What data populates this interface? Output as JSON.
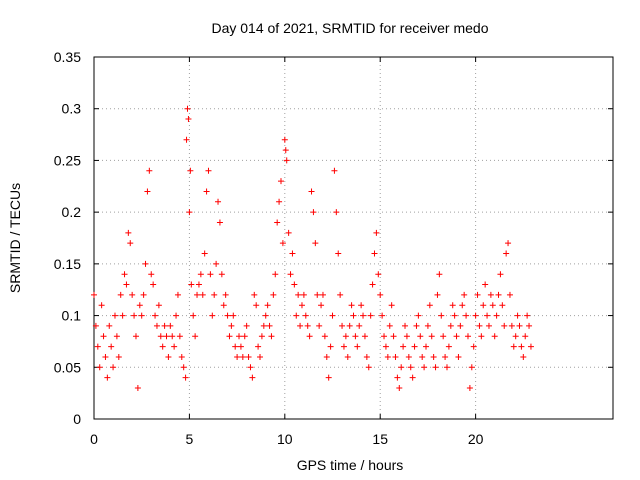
{
  "chart_data": {
    "type": "scatter",
    "title": "Day 014 of 2021, SRMTID for receiver medo",
    "xlabel": "GPS time / hours",
    "ylabel": "SRMTID / TECUs",
    "xlim": [
      0,
      27.2
    ],
    "ylim": [
      0,
      0.35
    ],
    "x_ticks": [
      0,
      5,
      10,
      15,
      20
    ],
    "x_tick_labels": [
      "0",
      "5",
      "10",
      "15",
      "20"
    ],
    "y_ticks": [
      0,
      0.05,
      0.1,
      0.15,
      0.2,
      0.25,
      0.3,
      0.35
    ],
    "y_tick_labels": [
      "0",
      "0.05",
      "0.1",
      "0.15",
      "0.2",
      "0.25",
      "0.3",
      "0.35"
    ],
    "grid": true,
    "marker": "+",
    "color": "#ff0000",
    "x_range_of_data": [
      0,
      23
    ],
    "series": [
      {
        "name": "SRMTID",
        "points": [
          [
            0.0,
            0.12
          ],
          [
            0.1,
            0.09
          ],
          [
            0.2,
            0.07
          ],
          [
            0.3,
            0.05
          ],
          [
            0.4,
            0.11
          ],
          [
            0.5,
            0.08
          ],
          [
            0.6,
            0.06
          ],
          [
            0.7,
            0.04
          ],
          [
            0.8,
            0.09
          ],
          [
            0.9,
            0.07
          ],
          [
            1.0,
            0.05
          ],
          [
            1.1,
            0.1
          ],
          [
            1.2,
            0.08
          ],
          [
            1.3,
            0.06
          ],
          [
            1.4,
            0.12
          ],
          [
            1.5,
            0.1
          ],
          [
            1.6,
            0.14
          ],
          [
            1.7,
            0.13
          ],
          [
            1.8,
            0.18
          ],
          [
            1.9,
            0.17
          ],
          [
            2.0,
            0.12
          ],
          [
            2.1,
            0.1
          ],
          [
            2.2,
            0.08
          ],
          [
            2.3,
            0.03
          ],
          [
            2.4,
            0.11
          ],
          [
            2.5,
            0.1
          ],
          [
            2.6,
            0.12
          ],
          [
            2.7,
            0.15
          ],
          [
            2.8,
            0.22
          ],
          [
            2.9,
            0.24
          ],
          [
            3.0,
            0.14
          ],
          [
            3.1,
            0.13
          ],
          [
            3.2,
            0.1
          ],
          [
            3.3,
            0.09
          ],
          [
            3.4,
            0.11
          ],
          [
            3.5,
            0.08
          ],
          [
            3.6,
            0.07
          ],
          [
            3.7,
            0.09
          ],
          [
            3.8,
            0.08
          ],
          [
            3.9,
            0.06
          ],
          [
            4.0,
            0.09
          ],
          [
            4.1,
            0.08
          ],
          [
            4.2,
            0.07
          ],
          [
            4.3,
            0.1
          ],
          [
            4.4,
            0.12
          ],
          [
            4.5,
            0.08
          ],
          [
            4.6,
            0.06
          ],
          [
            4.7,
            0.05
          ],
          [
            4.8,
            0.04
          ],
          [
            4.85,
            0.27
          ],
          [
            4.9,
            0.3
          ],
          [
            4.95,
            0.29
          ],
          [
            5.0,
            0.2
          ],
          [
            5.05,
            0.24
          ],
          [
            5.1,
            0.13
          ],
          [
            5.2,
            0.1
          ],
          [
            5.3,
            0.08
          ],
          [
            5.4,
            0.12
          ],
          [
            5.5,
            0.13
          ],
          [
            5.6,
            0.14
          ],
          [
            5.7,
            0.12
          ],
          [
            5.8,
            0.16
          ],
          [
            5.9,
            0.22
          ],
          [
            6.0,
            0.24
          ],
          [
            6.1,
            0.14
          ],
          [
            6.2,
            0.1
          ],
          [
            6.3,
            0.12
          ],
          [
            6.4,
            0.15
          ],
          [
            6.5,
            0.21
          ],
          [
            6.6,
            0.19
          ],
          [
            6.7,
            0.14
          ],
          [
            6.8,
            0.11
          ],
          [
            6.9,
            0.12
          ],
          [
            7.0,
            0.1
          ],
          [
            7.1,
            0.08
          ],
          [
            7.2,
            0.09
          ],
          [
            7.3,
            0.1
          ],
          [
            7.4,
            0.07
          ],
          [
            7.5,
            0.06
          ],
          [
            7.6,
            0.08
          ],
          [
            7.7,
            0.07
          ],
          [
            7.8,
            0.06
          ],
          [
            7.9,
            0.08
          ],
          [
            8.0,
            0.09
          ],
          [
            8.1,
            0.06
          ],
          [
            8.2,
            0.05
          ],
          [
            8.3,
            0.04
          ],
          [
            8.4,
            0.12
          ],
          [
            8.5,
            0.11
          ],
          [
            8.6,
            0.07
          ],
          [
            8.7,
            0.06
          ],
          [
            8.8,
            0.08
          ],
          [
            8.9,
            0.09
          ],
          [
            9.0,
            0.1
          ],
          [
            9.1,
            0.11
          ],
          [
            9.2,
            0.09
          ],
          [
            9.3,
            0.08
          ],
          [
            9.4,
            0.12
          ],
          [
            9.5,
            0.14
          ],
          [
            9.6,
            0.19
          ],
          [
            9.7,
            0.21
          ],
          [
            9.8,
            0.23
          ],
          [
            9.9,
            0.17
          ],
          [
            10.0,
            0.27
          ],
          [
            10.05,
            0.26
          ],
          [
            10.1,
            0.25
          ],
          [
            10.2,
            0.18
          ],
          [
            10.3,
            0.14
          ],
          [
            10.4,
            0.16
          ],
          [
            10.5,
            0.13
          ],
          [
            10.6,
            0.1
          ],
          [
            10.7,
            0.12
          ],
          [
            10.8,
            0.09
          ],
          [
            10.9,
            0.11
          ],
          [
            11.0,
            0.12
          ],
          [
            11.1,
            0.1
          ],
          [
            11.2,
            0.09
          ],
          [
            11.3,
            0.08
          ],
          [
            11.4,
            0.22
          ],
          [
            11.5,
            0.2
          ],
          [
            11.6,
            0.17
          ],
          [
            11.7,
            0.12
          ],
          [
            11.8,
            0.09
          ],
          [
            11.9,
            0.11
          ],
          [
            12.0,
            0.12
          ],
          [
            12.1,
            0.08
          ],
          [
            12.2,
            0.06
          ],
          [
            12.3,
            0.04
          ],
          [
            12.4,
            0.07
          ],
          [
            12.5,
            0.1
          ],
          [
            12.6,
            0.24
          ],
          [
            12.7,
            0.2
          ],
          [
            12.8,
            0.16
          ],
          [
            12.9,
            0.12
          ],
          [
            13.0,
            0.09
          ],
          [
            13.1,
            0.07
          ],
          [
            13.2,
            0.08
          ],
          [
            13.3,
            0.06
          ],
          [
            13.4,
            0.09
          ],
          [
            13.5,
            0.11
          ],
          [
            13.6,
            0.1
          ],
          [
            13.7,
            0.08
          ],
          [
            13.8,
            0.07
          ],
          [
            13.9,
            0.09
          ],
          [
            14.0,
            0.11
          ],
          [
            14.1,
            0.1
          ],
          [
            14.2,
            0.08
          ],
          [
            14.3,
            0.06
          ],
          [
            14.4,
            0.05
          ],
          [
            14.5,
            0.1
          ],
          [
            14.6,
            0.13
          ],
          [
            14.7,
            0.16
          ],
          [
            14.8,
            0.18
          ],
          [
            14.9,
            0.14
          ],
          [
            15.0,
            0.12
          ],
          [
            15.1,
            0.1
          ],
          [
            15.2,
            0.08
          ],
          [
            15.3,
            0.07
          ],
          [
            15.4,
            0.06
          ],
          [
            15.5,
            0.09
          ],
          [
            15.6,
            0.11
          ],
          [
            15.7,
            0.08
          ],
          [
            15.8,
            0.06
          ],
          [
            15.9,
            0.04
          ],
          [
            16.0,
            0.03
          ],
          [
            16.1,
            0.05
          ],
          [
            16.2,
            0.07
          ],
          [
            16.3,
            0.09
          ],
          [
            16.4,
            0.08
          ],
          [
            16.5,
            0.06
          ],
          [
            16.6,
            0.05
          ],
          [
            16.7,
            0.04
          ],
          [
            16.8,
            0.07
          ],
          [
            16.9,
            0.09
          ],
          [
            17.0,
            0.1
          ],
          [
            17.1,
            0.08
          ],
          [
            17.2,
            0.06
          ],
          [
            17.3,
            0.05
          ],
          [
            17.4,
            0.07
          ],
          [
            17.5,
            0.09
          ],
          [
            17.6,
            0.11
          ],
          [
            17.7,
            0.08
          ],
          [
            17.8,
            0.06
          ],
          [
            17.9,
            0.05
          ],
          [
            18.0,
            0.12
          ],
          [
            18.1,
            0.14
          ],
          [
            18.2,
            0.1
          ],
          [
            18.3,
            0.08
          ],
          [
            18.4,
            0.06
          ],
          [
            18.5,
            0.05
          ],
          [
            18.6,
            0.07
          ],
          [
            18.7,
            0.09
          ],
          [
            18.8,
            0.11
          ],
          [
            18.9,
            0.1
          ],
          [
            19.0,
            0.08
          ],
          [
            19.1,
            0.06
          ],
          [
            19.2,
            0.09
          ],
          [
            19.3,
            0.11
          ],
          [
            19.4,
            0.12
          ],
          [
            19.5,
            0.1
          ],
          [
            19.6,
            0.08
          ],
          [
            19.7,
            0.03
          ],
          [
            19.8,
            0.05
          ],
          [
            19.9,
            0.07
          ],
          [
            20.0,
            0.1
          ],
          [
            20.1,
            0.12
          ],
          [
            20.2,
            0.09
          ],
          [
            20.3,
            0.08
          ],
          [
            20.4,
            0.11
          ],
          [
            20.5,
            0.13
          ],
          [
            20.6,
            0.1
          ],
          [
            20.7,
            0.09
          ],
          [
            20.8,
            0.12
          ],
          [
            20.9,
            0.11
          ],
          [
            21.0,
            0.08
          ],
          [
            21.1,
            0.1
          ],
          [
            21.2,
            0.12
          ],
          [
            21.3,
            0.14
          ],
          [
            21.4,
            0.11
          ],
          [
            21.5,
            0.09
          ],
          [
            21.6,
            0.16
          ],
          [
            21.7,
            0.17
          ],
          [
            21.8,
            0.12
          ],
          [
            21.9,
            0.09
          ],
          [
            22.0,
            0.07
          ],
          [
            22.1,
            0.08
          ],
          [
            22.2,
            0.1
          ],
          [
            22.3,
            0.09
          ],
          [
            22.4,
            0.07
          ],
          [
            22.5,
            0.06
          ],
          [
            22.6,
            0.08
          ],
          [
            22.7,
            0.1
          ],
          [
            22.8,
            0.09
          ],
          [
            22.9,
            0.07
          ]
        ]
      }
    ]
  }
}
